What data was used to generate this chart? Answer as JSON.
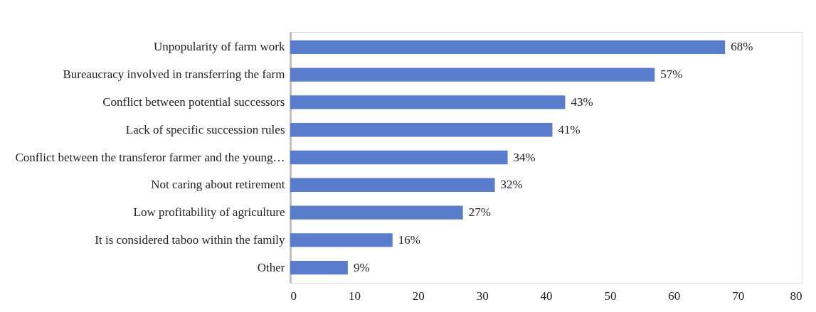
{
  "chart_data": {
    "type": "bar",
    "orientation": "horizontal",
    "categories": [
      "Unpopularity of farm work",
      "Bureaucracy involved in transferring the farm",
      "Conflict between potential successors",
      "Lack of specific succession rules",
      "Conflict between the transferor farmer and the young…",
      "Not caring about retirement",
      "Low profitability of agriculture",
      "It is considered taboo within the family",
      "Other"
    ],
    "values": [
      68,
      57,
      43,
      41,
      34,
      32,
      27,
      16,
      9
    ],
    "value_labels": [
      "68%",
      "57%",
      "43%",
      "41%",
      "34%",
      "32%",
      "27%",
      "16%",
      "9%"
    ],
    "color": "#5a7ccc",
    "xlim": [
      0,
      80
    ],
    "xticks": [
      0,
      10,
      20,
      30,
      40,
      50,
      60,
      70,
      80
    ],
    "grid": false
  }
}
